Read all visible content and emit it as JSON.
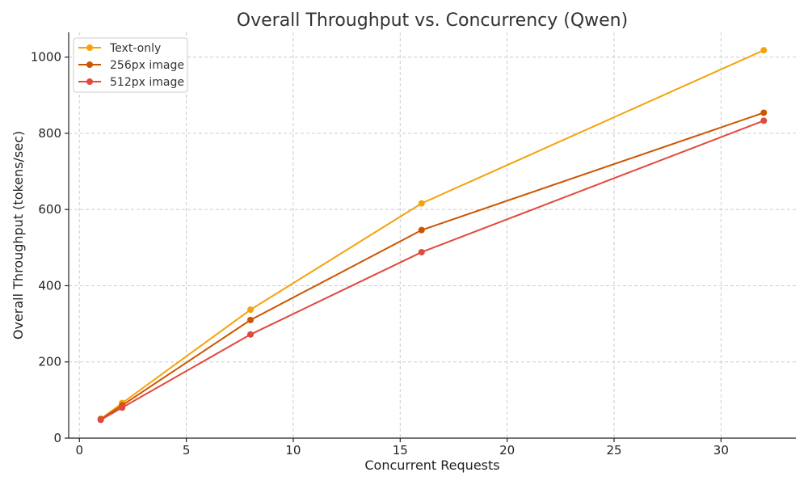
{
  "chart_data": {
    "type": "line",
    "title": "Overall Throughput vs. Concurrency (Qwen)",
    "xlabel": "Concurrent Requests",
    "ylabel": "Overall Throughput (tokens/sec)",
    "xlim": [
      -0.5,
      33.5
    ],
    "ylim": [
      0,
      1065
    ],
    "xticks": [
      0,
      5,
      10,
      15,
      20,
      25,
      30
    ],
    "yticks": [
      0,
      200,
      400,
      600,
      800,
      1000
    ],
    "grid": true,
    "legend_position": "top-left",
    "x": [
      1,
      2,
      8,
      16,
      32
    ],
    "series": [
      {
        "name": "Text-only",
        "color": "#f5a20c",
        "values": [
          50,
          92,
          337,
          616,
          1018
        ]
      },
      {
        "name": "256px image",
        "color": "#cc5500",
        "values": [
          50,
          86,
          310,
          546,
          854
        ]
      },
      {
        "name": "512px image",
        "color": "#e0493e",
        "values": [
          48,
          80,
          272,
          488,
          833
        ]
      }
    ]
  }
}
